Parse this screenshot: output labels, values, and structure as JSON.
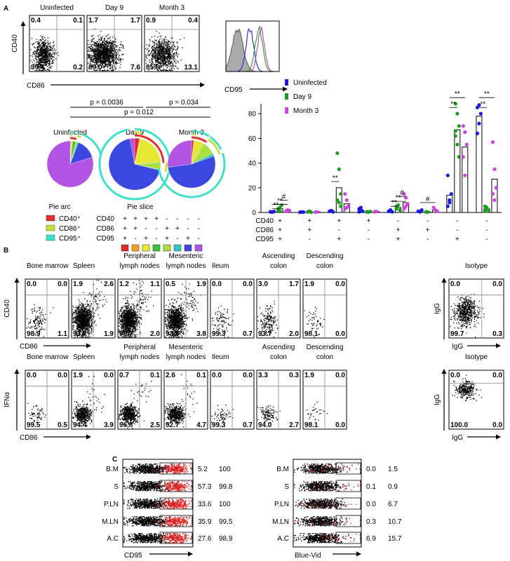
{
  "panel_a": {
    "label": "A",
    "flow_plots": [
      {
        "title": "Uninfected",
        "color": "#2424c8",
        "quadrants": [
          "0.4",
          "0.1",
          "99.4",
          "0.2"
        ]
      },
      {
        "title": "Day 9",
        "color": "#22a022",
        "quadrants": [
          "1.7",
          "1.7",
          "89.0",
          "7.6"
        ]
      },
      {
        "title": "Month 3",
        "color": "#c840c8",
        "quadrants": [
          "0.9",
          "0.4",
          "85.6",
          "13.1"
        ]
      }
    ],
    "y_axis": "CD40",
    "x_axis": "CD86",
    "histogram_axis": "CD95",
    "p_values": [
      "p = 0.0036",
      "p = 0.034",
      "p = 0.012"
    ],
    "pies": [
      {
        "title": "Uninfected",
        "slices": [
          0.5,
          0.3,
          1,
          2,
          1,
          1,
          14,
          78
        ]
      },
      {
        "title": "Day 9",
        "slices": [
          3,
          0.5,
          20,
          0.5,
          4,
          0.4,
          67,
          3
        ]
      },
      {
        "title": "Month 3",
        "slices": [
          1.5,
          0.4,
          7,
          0.6,
          8,
          2,
          53,
          27
        ]
      }
    ],
    "pie_arc": {
      "title": "Pie arc",
      "items": [
        {
          "label": "CD40⁺",
          "color": "#e0302a"
        },
        {
          "label": "CD86⁺",
          "color": "#c4e03a"
        },
        {
          "label": "CD95⁺",
          "color": "#3ee0c6"
        }
      ]
    },
    "pie_slice": {
      "title": "Pie slice",
      "rows": [
        {
          "label": "CD40",
          "signs": [
            "+",
            "+",
            "+",
            "+",
            "-",
            "-",
            "-",
            "-"
          ]
        },
        {
          "label": "CD86",
          "signs": [
            "+",
            "+",
            "-",
            "-",
            "+",
            "+",
            "-",
            "-"
          ]
        },
        {
          "label": "CD95",
          "signs": [
            "+",
            "-",
            "+",
            "-",
            "+",
            "-",
            "+",
            "-"
          ]
        }
      ],
      "colors": [
        "#e02828",
        "#f0a020",
        "#e4e832",
        "#38c038",
        "#a8e040",
        "#30c8b8",
        "#3a48e0",
        "#b454e4"
      ]
    }
  },
  "chart_data": {
    "type": "bar",
    "category_rows": [
      "CD40",
      "CD86",
      "CD95"
    ],
    "categories": [
      [
        "+",
        "+",
        "+"
      ],
      [
        "+",
        "+",
        "-"
      ],
      [
        "+",
        "-",
        "+"
      ],
      [
        "+",
        "-",
        "-"
      ],
      [
        "-",
        "+",
        "+"
      ],
      [
        "-",
        "+",
        "-"
      ],
      [
        "-",
        "-",
        "+"
      ],
      [
        "-",
        "-",
        "-"
      ]
    ],
    "series": [
      {
        "name": "Uninfected",
        "color": "#1a1adc",
        "values": [
          0.5,
          0.3,
          1,
          2,
          1,
          1,
          14,
          78
        ],
        "points": [
          [
            0.5,
            0.3,
            0.8,
            0.6
          ],
          [
            0.2,
            0.4,
            0.3
          ],
          [
            1,
            1.5,
            0.5,
            0.8
          ],
          [
            3,
            2,
            1,
            0.5,
            4
          ],
          [
            1,
            2,
            0.5,
            0.8
          ],
          [
            1,
            0.5,
            2
          ],
          [
            5,
            8,
            15,
            30,
            10
          ],
          [
            85,
            87,
            80,
            64,
            72
          ]
        ]
      },
      {
        "name": "Day 9",
        "color": "#1e9a1e",
        "values": [
          3,
          0.5,
          20,
          0.5,
          4,
          0.4,
          67,
          3
        ],
        "points": [
          [
            2,
            4,
            6,
            3,
            1
          ],
          [
            0.5,
            1,
            0.2
          ],
          [
            48,
            35,
            15,
            10,
            8,
            5
          ],
          [
            0.5,
            0.3,
            0.8
          ],
          [
            3,
            6,
            2,
            5
          ],
          [
            0.5,
            0.3
          ],
          [
            88,
            80,
            70,
            66,
            55,
            45,
            62
          ],
          [
            5,
            3,
            2,
            1,
            4
          ]
        ]
      },
      {
        "name": "Month 3",
        "color": "#cc44dd",
        "values": [
          1.5,
          0.4,
          7,
          0.6,
          8,
          2,
          53,
          27
        ],
        "points": [
          [
            1,
            2,
            1.5
          ],
          [
            0.3,
            0.5
          ],
          [
            15,
            10,
            5,
            3,
            4
          ],
          [
            0.5,
            0.8
          ],
          [
            15,
            12,
            7,
            3,
            5
          ],
          [
            4,
            2,
            1
          ],
          [
            70,
            65,
            55,
            45,
            30
          ],
          [
            57,
            35,
            20,
            15,
            10
          ]
        ]
      }
    ],
    "ylim": [
      0,
      88
    ],
    "yticks": [
      0,
      20,
      40,
      60,
      80
    ],
    "annotations": [
      "**",
      "**",
      "#",
      "**",
      "**",
      "**",
      "#",
      "#",
      "**",
      "**",
      "**",
      "**"
    ]
  },
  "panel_b": {
    "label": "B",
    "rows": [
      {
        "titles": [
          [
            "Bone marrow"
          ],
          [
            "Spleen"
          ],
          [
            "Peripheral",
            "lymph nodes"
          ],
          [
            "Mesenteric",
            "lymph nodes"
          ],
          [
            "Ileum"
          ],
          [
            "Ascending",
            "colon"
          ],
          [
            "Descending",
            "colon"
          ]
        ],
        "y_axis": "CD40",
        "x_axis": "CD86",
        "quadrants": [
          [
            "0.0",
            "0.0",
            "98.9",
            "1.1"
          ],
          [
            "1.9",
            "2.6",
            "93.7",
            "1.9"
          ],
          [
            "1.2",
            "1.1",
            "95.7",
            "2.0"
          ],
          [
            "0.5",
            "1.9",
            "93.8",
            "3.8"
          ],
          [
            "0.0",
            "0.0",
            "99.3",
            "0.7"
          ],
          [
            "3.0",
            "1.7",
            "93.7",
            "2.0"
          ],
          [
            "1.9",
            "0.0",
            "98.1",
            "0.0"
          ]
        ],
        "isotype_title": "Isotype",
        "isotype_y": "IgG",
        "isotype_x": "IgG",
        "isotype_quadrants": [
          "0.0",
          "0.0",
          "99.7",
          "0.3"
        ]
      },
      {
        "titles": [
          [
            "Bone marrow"
          ],
          [
            "Spleen"
          ],
          [
            "Peripheral",
            "lymph nodes"
          ],
          [
            "Mesenteric",
            "lymph nodes"
          ],
          [
            "Ileum"
          ],
          [
            "Ascending",
            "colon"
          ],
          [
            "Descending",
            "colon"
          ]
        ],
        "y_axis": "IFNα",
        "x_axis": "CD86",
        "quadrants": [
          [
            "0.0",
            "0.0",
            "99.5",
            "0.5"
          ],
          [
            "1.9",
            "0.0",
            "94.4",
            "3.9"
          ],
          [
            "0.7",
            "0.1",
            "96.8",
            "2.5"
          ],
          [
            "2.6",
            "0.1",
            "92.7",
            "4.7"
          ],
          [
            "0.0",
            "0.0",
            "99.3",
            "0.7"
          ],
          [
            "3.3",
            "0.3",
            "94.0",
            "2.7"
          ],
          [
            "1.9",
            "0.0",
            "98.1",
            "0.0"
          ]
        ],
        "isotype_title": "Isotype",
        "isotype_y": "IgG",
        "isotype_x": "IgG",
        "isotype_quadrants": [
          "0.0",
          "0.0",
          "100.0",
          "0.0"
        ]
      }
    ]
  },
  "panel_c": {
    "label": "C",
    "panels": [
      {
        "axis": "CD95",
        "rows": [
          {
            "label": "B.M",
            "black": "5.2",
            "red": "100"
          },
          {
            "label": "S",
            "black": "57.3",
            "red": "99.8"
          },
          {
            "label": "P.LN",
            "black": "33.6",
            "red": "100"
          },
          {
            "label": "M.LN",
            "black": "35.9",
            "red": "99.5"
          },
          {
            "label": "A.C",
            "black": "27.6",
            "red": "98.9"
          }
        ]
      },
      {
        "axis": "Blue-Vid",
        "rows": [
          {
            "label": "B.M",
            "black": "0.0",
            "red": "1.5"
          },
          {
            "label": "S",
            "black": "0.1",
            "red": "0.9"
          },
          {
            "label": "P.LN",
            "black": "0.0",
            "red": "6.7"
          },
          {
            "label": "M.LN",
            "black": "0.3",
            "red": "10.7"
          },
          {
            "label": "A.C",
            "black": "6.9",
            "red": "15.7"
          }
        ]
      }
    ]
  }
}
